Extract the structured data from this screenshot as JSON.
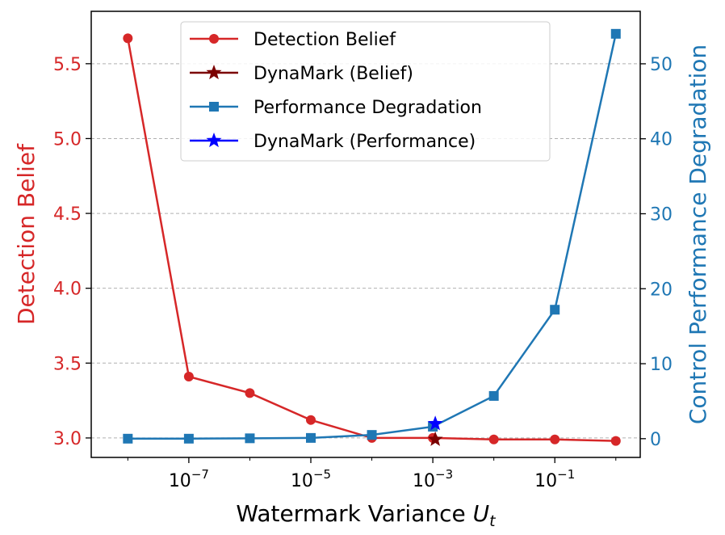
{
  "chart_data": {
    "type": "line",
    "xscale": "log",
    "xlabel_text": "Watermark Variance ",
    "xlabel_symbol": "U",
    "xlabel_subscript": "t",
    "ylabel_left": "Detection Belief",
    "ylabel_right": "Control Performance Degradation",
    "xlim_log10": [
      -8.6,
      0.4
    ],
    "ylim_left": [
      2.87,
      5.85
    ],
    "ylim_right": [
      -2.5,
      57.0
    ],
    "x_ticks": [
      {
        "exp": -7,
        "base": "10",
        "sup": "−7"
      },
      {
        "exp": -5,
        "base": "10",
        "sup": "−5"
      },
      {
        "exp": -3,
        "base": "10",
        "sup": "−3"
      },
      {
        "exp": -1,
        "base": "10",
        "sup": "−1"
      }
    ],
    "y_left_ticks": [
      "3.0",
      "3.5",
      "4.0",
      "4.5",
      "5.0",
      "5.5"
    ],
    "y_left_tick_values": [
      3.0,
      3.5,
      4.0,
      4.5,
      5.0,
      5.5
    ],
    "y_right_ticks": [
      "0",
      "10",
      "20",
      "30",
      "40",
      "50"
    ],
    "y_right_tick_values": [
      0,
      10,
      20,
      30,
      40,
      50
    ],
    "x_log10": [
      -8,
      -7,
      -6,
      -5,
      -4,
      -3,
      -2,
      -1,
      0
    ],
    "series": [
      {
        "name": "Detection Belief",
        "axis": "left",
        "color": "#d62728",
        "marker": "circle",
        "values": [
          5.67,
          3.41,
          3.3,
          3.12,
          3.0,
          3.0,
          2.99,
          2.99,
          2.98
        ]
      },
      {
        "name": "DynaMark (Belief)",
        "axis": "left",
        "color": "#7b0000",
        "marker": "star",
        "points": [
          {
            "x_log10": -2.96,
            "y": 2.99
          }
        ]
      },
      {
        "name": "Performance Degradation",
        "axis": "right",
        "color": "#1f77b4",
        "marker": "square",
        "values": [
          0.0,
          0.0,
          0.05,
          0.1,
          0.5,
          1.6,
          5.7,
          17.2,
          54.0
        ]
      },
      {
        "name": "DynaMark (Performance)",
        "axis": "right",
        "color": "#0000ff",
        "marker": "star",
        "points": [
          {
            "x_log10": -2.96,
            "y": 2.0
          }
        ]
      }
    ],
    "left_axis_color": "#d62728",
    "right_axis_color": "#1f77b4",
    "grid": "horizontal-dashed",
    "legend_position": "top-center"
  }
}
